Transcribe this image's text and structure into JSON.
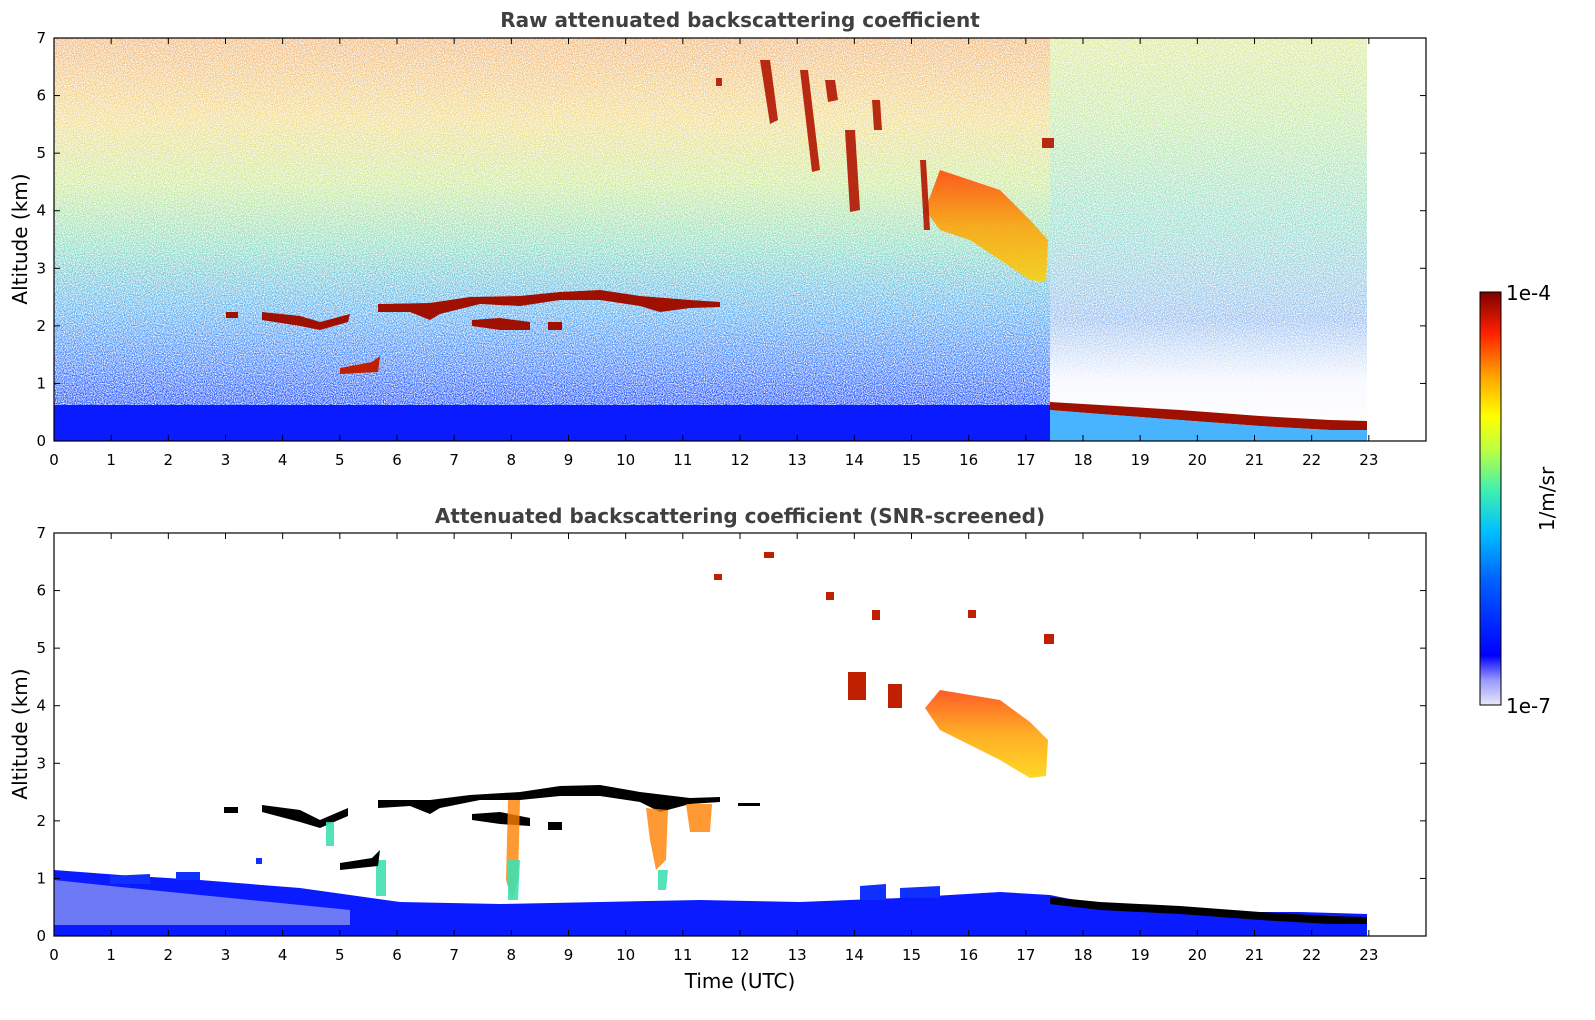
{
  "chart_data": [
    {
      "type": "heatmap",
      "title": "Raw attenuated backscattering coefficient",
      "ylabel": "Altitude (km)",
      "xlabel": "",
      "xlim": [
        0,
        24
      ],
      "ylim": [
        0,
        7
      ],
      "xticks": [
        "0",
        "1",
        "2",
        "3",
        "4",
        "5",
        "6",
        "7",
        "8",
        "9",
        "10",
        "11",
        "12",
        "13",
        "14",
        "15",
        "16",
        "17",
        "18",
        "19",
        "20",
        "21",
        "22",
        "23"
      ],
      "yticks": [
        "0",
        "1",
        "2",
        "3",
        "4",
        "5",
        "6",
        "7"
      ],
      "data_end_hour": 23,
      "features": [
        {
          "name": "surface layer",
          "t_start": 0,
          "t_end": 23,
          "alt_top": 0.5,
          "level": "mid"
        },
        {
          "name": "cloud layer",
          "t_start": 3,
          "t_end": 12,
          "alt": 2.2,
          "level": "high"
        },
        {
          "name": "low cloud",
          "t_start": 5,
          "t_end": 5.7,
          "alt": 1.2,
          "level": "high"
        },
        {
          "name": "virga",
          "t_start": 13,
          "t_end": 17.4,
          "alt_top": 6.5,
          "alt_bottom": 2.8,
          "level": "high"
        },
        {
          "name": "evening low cloud",
          "t_start": 17.5,
          "t_end": 23,
          "alt_start": 0.6,
          "alt_end": 0.25,
          "level": "high"
        }
      ]
    },
    {
      "type": "heatmap",
      "title": "Attenuated backscattering coefficient (SNR-screened)",
      "ylabel": "Altitude (km)",
      "xlabel": "Time (UTC)",
      "xlim": [
        0,
        24
      ],
      "ylim": [
        0,
        7
      ],
      "xticks": [
        "0",
        "1",
        "2",
        "3",
        "4",
        "5",
        "6",
        "7",
        "8",
        "9",
        "10",
        "11",
        "12",
        "13",
        "14",
        "15",
        "16",
        "17",
        "18",
        "19",
        "20",
        "21",
        "22",
        "23"
      ],
      "yticks": [
        "0",
        "1",
        "2",
        "3",
        "4",
        "5",
        "6",
        "7"
      ],
      "data_end_hour": 23
    }
  ],
  "colorbar": {
    "label": "1/m/sr",
    "max_label": "1e-4",
    "min_label": "1e-7",
    "scale": "log",
    "colors": [
      "#e8e8f8",
      "#0000ff",
      "#00bfff",
      "#7fff7f",
      "#ffff00",
      "#ff7f00",
      "#ff0000",
      "#7f0000"
    ]
  }
}
